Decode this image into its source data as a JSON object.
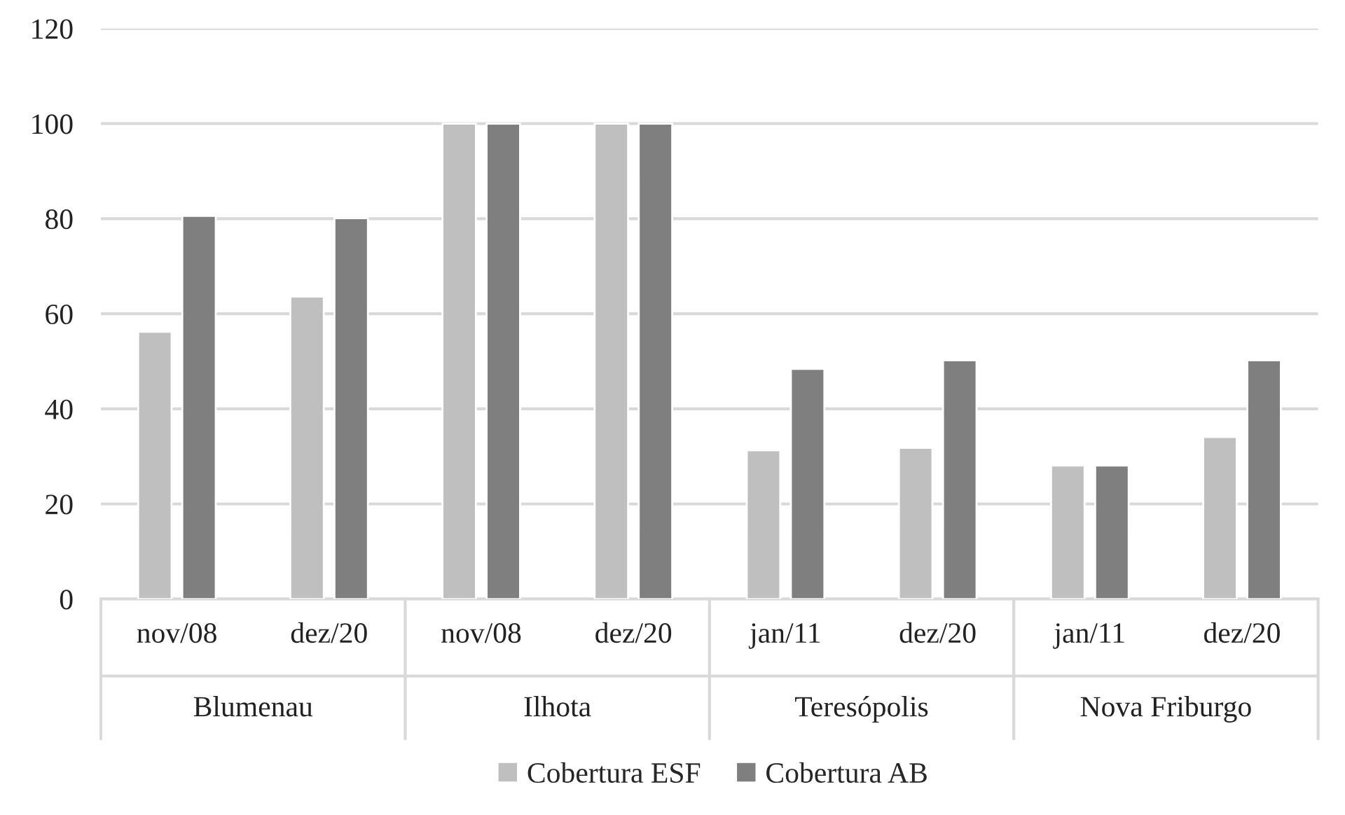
{
  "chart_data": {
    "type": "bar",
    "categories": [
      "nov/08",
      "dez/20",
      "nov/08",
      "dez/20",
      "jan/11",
      "dez/20",
      "jan/11",
      "dez/20"
    ],
    "series": [
      {
        "name": "Cobertura ESF",
        "color": "#bfbfbf",
        "values": [
          56.2,
          63.6,
          100,
          100,
          31.3,
          31.8,
          28.1,
          34.1
        ]
      },
      {
        "name": "Cobertura AB",
        "color": "#7f7f7f",
        "values": [
          80.6,
          80.1,
          100,
          100,
          48.4,
          50.2,
          28.1,
          50.2
        ]
      }
    ],
    "annotations": [
      "Blumenau",
      "Ilhota",
      "Teresópolis",
      "Nova Friburgo"
    ],
    "ylim": [
      0,
      120
    ],
    "yticks": [
      0,
      20,
      40,
      60,
      80,
      100,
      120
    ],
    "grid": "y",
    "legend": "bottom"
  }
}
